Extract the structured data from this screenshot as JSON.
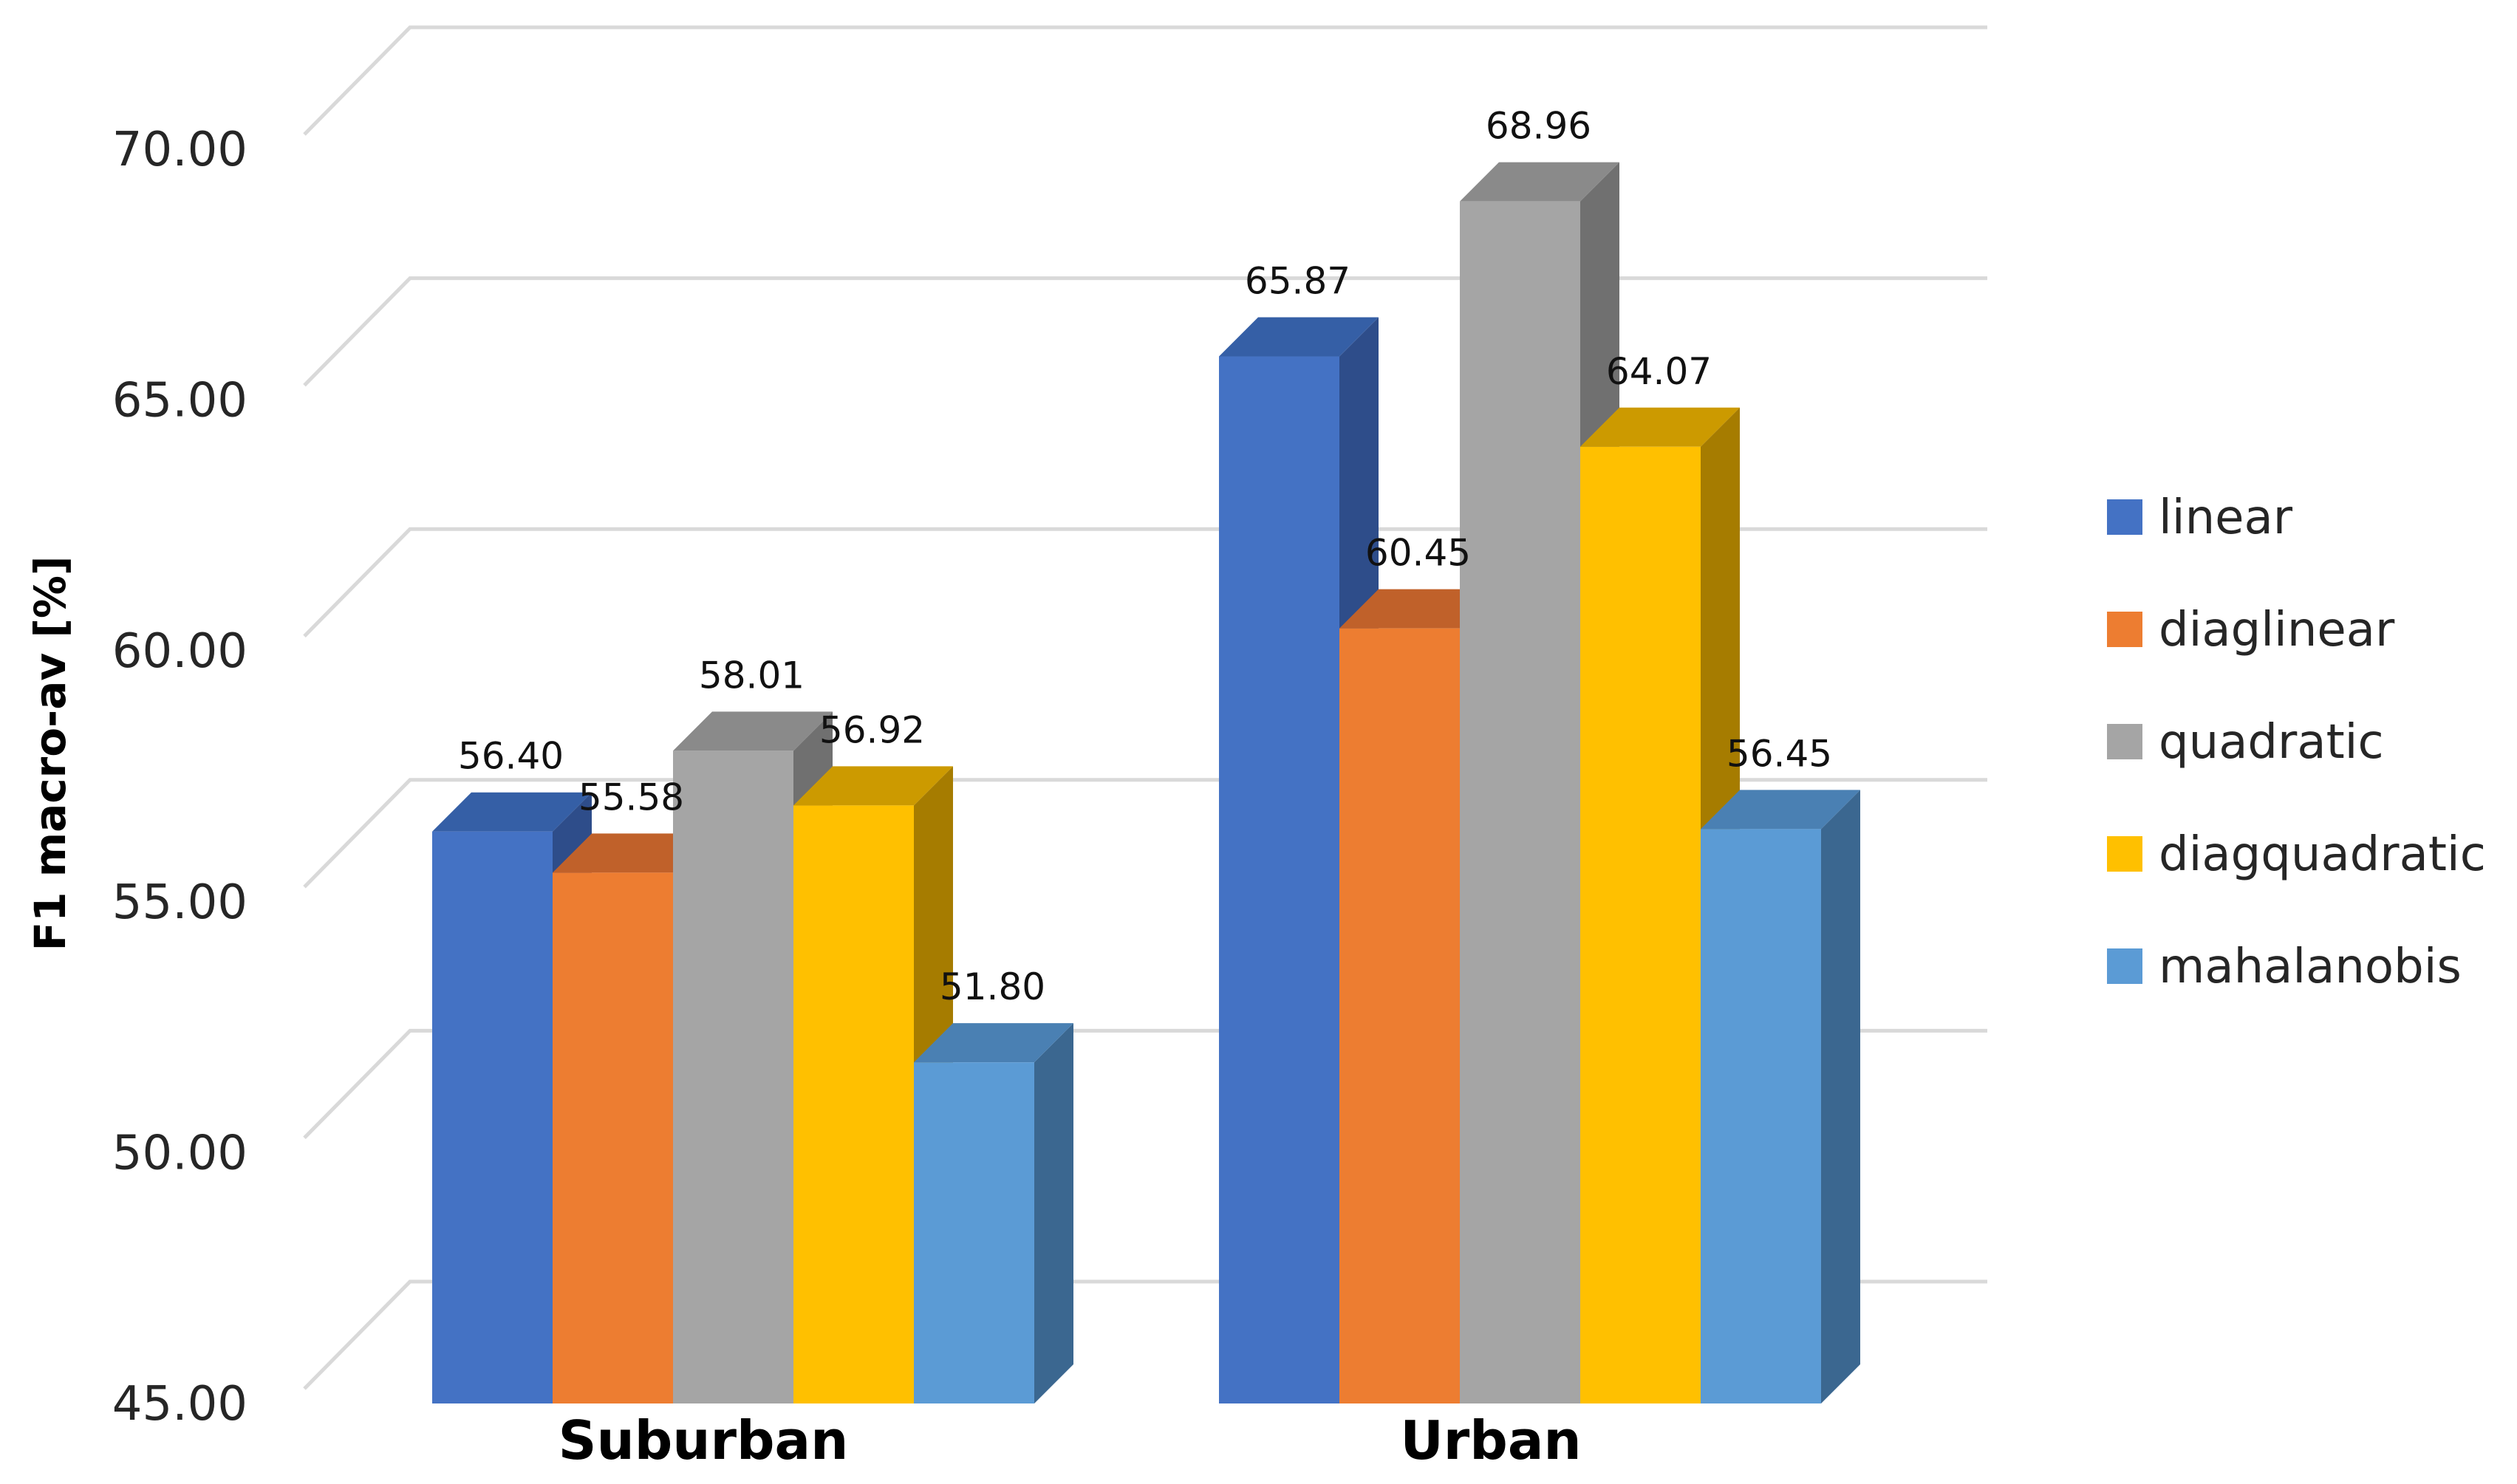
{
  "chart_data": {
    "type": "bar",
    "style": "3d-clustered-column",
    "title": "",
    "xlabel": "",
    "ylabel": "F1 macro-av [%]",
    "ylim": [
      45,
      70
    ],
    "yticks": [
      "45.00",
      "50.00",
      "55.00",
      "60.00",
      "65.00",
      "70.00"
    ],
    "grid": true,
    "legend_position": "right",
    "categories": [
      "Suburban",
      "Urban"
    ],
    "series": [
      {
        "name": "linear",
        "values": [
          56.4,
          65.87
        ],
        "labels": [
          "56.40",
          "65.87"
        ],
        "color": "#4472c4",
        "side": "#2e4d8a",
        "top": "#355fa6"
      },
      {
        "name": "diaglinear",
        "values": [
          55.58,
          60.45
        ],
        "labels": [
          "55.58",
          "60.45"
        ],
        "color": "#ed7d31",
        "side": "#a8561f",
        "top": "#c0612a"
      },
      {
        "name": "quadratic",
        "values": [
          58.01,
          68.96
        ],
        "labels": [
          "58.01",
          "68.96"
        ],
        "color": "#a5a5a5",
        "side": "#707070",
        "top": "#8a8a8a"
      },
      {
        "name": "diagquadratic",
        "values": [
          56.92,
          64.07
        ],
        "labels": [
          "56.92",
          "64.07"
        ],
        "color": "#ffc000",
        "side": "#a67c00",
        "top": "#cc9a00"
      },
      {
        "name": "mahalanobis",
        "values": [
          51.8,
          56.45
        ],
        "labels": [
          "51.80",
          "56.45"
        ],
        "color": "#5b9bd5",
        "side": "#3b6790",
        "top": "#4a80b3"
      }
    ]
  }
}
